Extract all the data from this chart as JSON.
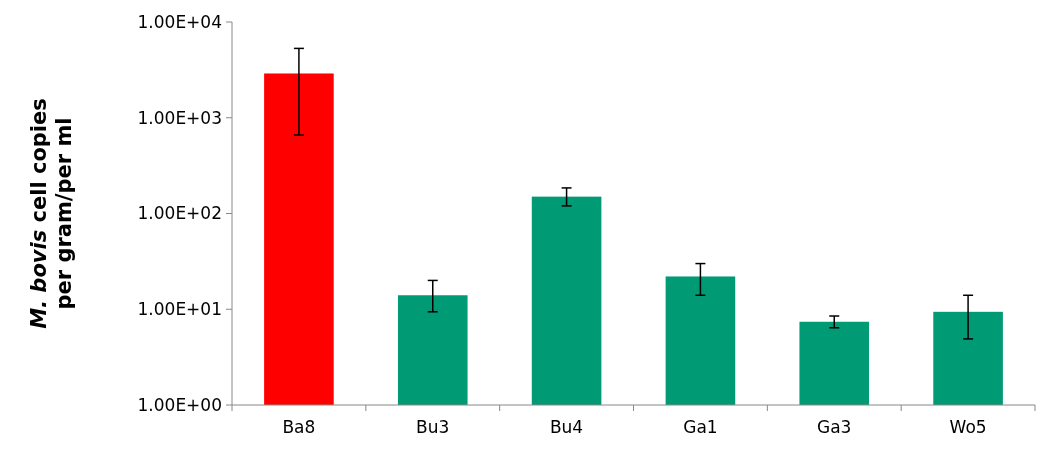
{
  "chart_data": {
    "type": "bar",
    "ylabel": "M. bovis cell copies per gram/per ml",
    "categories": [
      "Ba8",
      "Bu3",
      "Bu4",
      "Ga1",
      "Ga3",
      "Wo5"
    ],
    "values": [
      2900,
      14,
      150,
      22,
      7.4,
      9.4
    ],
    "colors": [
      "#ff0000",
      "#009a74",
      "#009a74",
      "#009a74",
      "#009a74",
      "#009a74"
    ],
    "errors": [
      [
        660,
        5300
      ],
      [
        9.4,
        20
      ],
      [
        120,
        185
      ],
      [
        14,
        30
      ],
      [
        6.4,
        8.5
      ],
      [
        4.9,
        14
      ]
    ],
    "log": "y",
    "ylim": [
      1,
      10000
    ],
    "yticks": [
      {
        "value": 1,
        "label": "1.00E+00"
      },
      {
        "value": 10,
        "label": "1.00E+01"
      },
      {
        "value": 100,
        "label": "1.00E+02"
      },
      {
        "value": 1000,
        "label": "1.00E+03"
      },
      {
        "value": 10000,
        "label": "1.00E+04"
      }
    ],
    "grid": false
  }
}
